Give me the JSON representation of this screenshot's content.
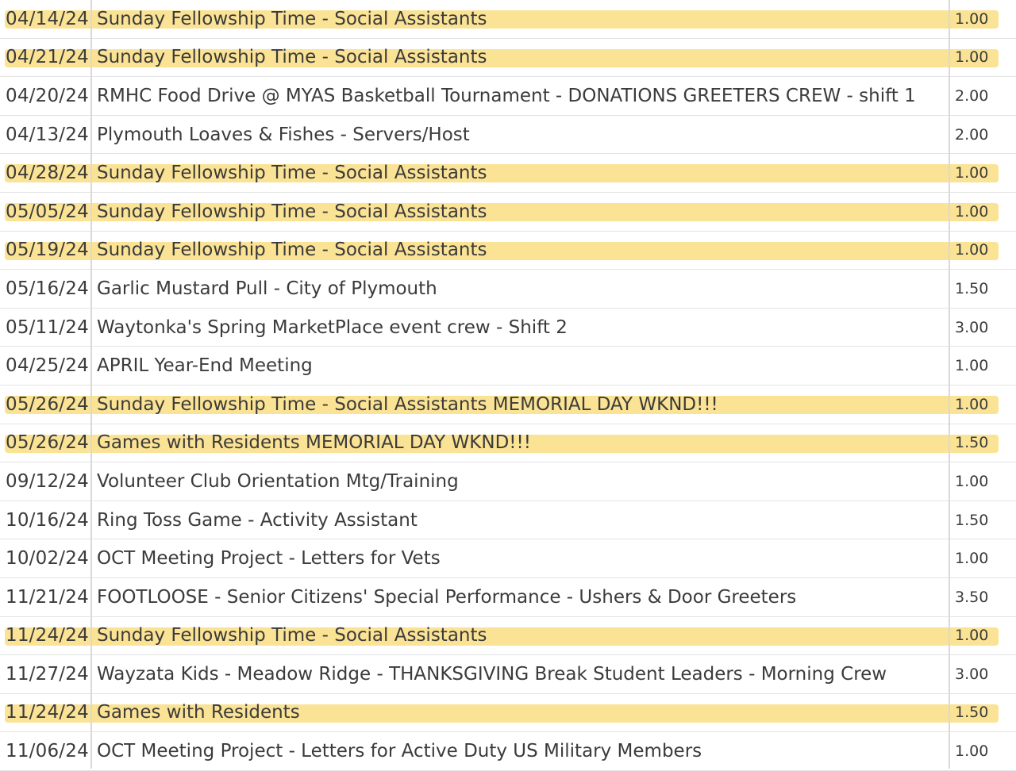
{
  "highlight_color": "#fbe08a",
  "rows": [
    {
      "date": "04/14/24",
      "description": "Sunday Fellowship Time - Social Assistants",
      "hours": "1.00",
      "highlighted": true
    },
    {
      "date": "04/21/24",
      "description": "Sunday Fellowship Time - Social Assistants",
      "hours": "1.00",
      "highlighted": true
    },
    {
      "date": "04/20/24",
      "description": "RMHC Food Drive @ MYAS Basketball Tournament - DONATIONS GREETERS CREW - shift 1",
      "hours": "2.00",
      "highlighted": false
    },
    {
      "date": "04/13/24",
      "description": "Plymouth Loaves & Fishes - Servers/Host",
      "hours": "2.00",
      "highlighted": false
    },
    {
      "date": "04/28/24",
      "description": "Sunday Fellowship Time - Social Assistants",
      "hours": "1.00",
      "highlighted": true
    },
    {
      "date": "05/05/24",
      "description": "Sunday Fellowship Time - Social Assistants",
      "hours": "1.00",
      "highlighted": true
    },
    {
      "date": "05/19/24",
      "description": "Sunday Fellowship Time - Social Assistants",
      "hours": "1.00",
      "highlighted": true
    },
    {
      "date": "05/16/24",
      "description": "Garlic Mustard Pull - City of Plymouth",
      "hours": "1.50",
      "highlighted": false
    },
    {
      "date": "05/11/24",
      "description": "Waytonka's Spring MarketPlace event crew - Shift 2",
      "hours": "3.00",
      "highlighted": false
    },
    {
      "date": "04/25/24",
      "description": "APRIL Year-End Meeting",
      "hours": "1.00",
      "highlighted": false
    },
    {
      "date": "05/26/24",
      "description": "Sunday Fellowship Time - Social Assistants MEMORIAL DAY WKND!!!",
      "hours": "1.00",
      "highlighted": true
    },
    {
      "date": "05/26/24",
      "description": "Games with Residents MEMORIAL DAY WKND!!!",
      "hours": "1.50",
      "highlighted": true
    },
    {
      "date": "09/12/24",
      "description": "Volunteer Club Orientation Mtg/Training",
      "hours": "1.00",
      "highlighted": false
    },
    {
      "date": "10/16/24",
      "description": "Ring Toss Game - Activity Assistant",
      "hours": "1.50",
      "highlighted": false
    },
    {
      "date": "10/02/24",
      "description": "OCT Meeting Project - Letters for Vets",
      "hours": "1.00",
      "highlighted": false
    },
    {
      "date": "11/21/24",
      "description": "FOOTLOOSE - Senior Citizens' Special Performance - Ushers & Door Greeters",
      "hours": "3.50",
      "highlighted": false
    },
    {
      "date": "11/24/24",
      "description": "Sunday Fellowship Time - Social Assistants",
      "hours": "1.00",
      "highlighted": true
    },
    {
      "date": "11/27/24",
      "description": "Wayzata Kids - Meadow Ridge - THANKSGIVING Break Student Leaders - Morning Crew",
      "hours": "3.00",
      "highlighted": false
    },
    {
      "date": "11/24/24",
      "description": "Games with Residents",
      "hours": "1.50",
      "highlighted": true
    },
    {
      "date": "11/06/24",
      "description": "OCT Meeting Project - Letters for Active Duty US Military Members",
      "hours": "1.00",
      "highlighted": false
    }
  ]
}
